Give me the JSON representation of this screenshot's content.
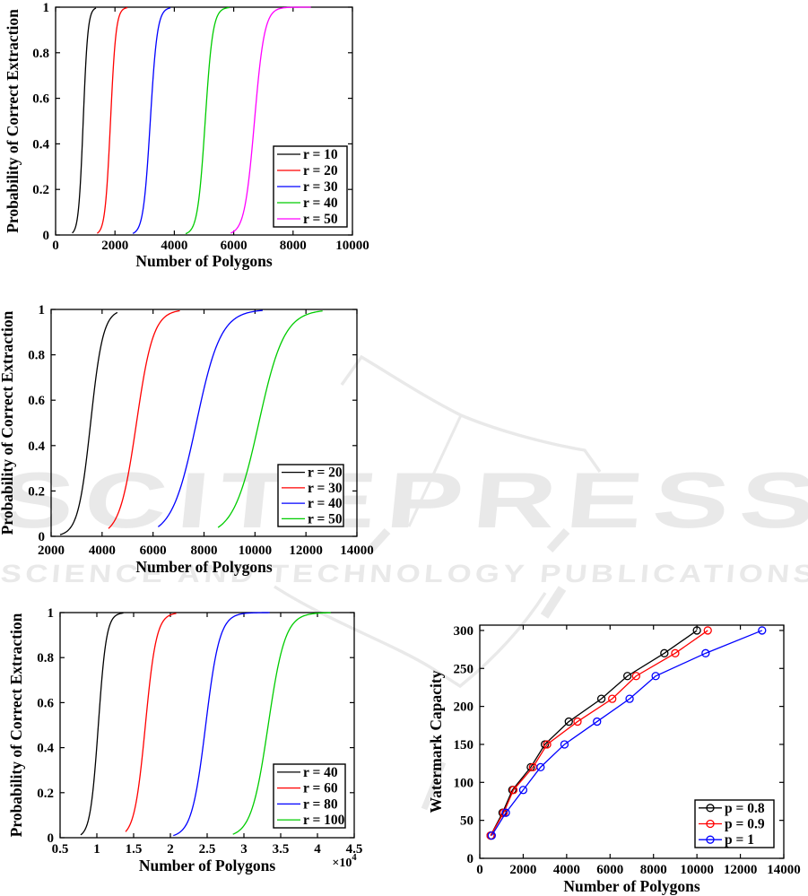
{
  "watermark": {
    "title": "SCITEPRESS",
    "subtitle": "SCIENCE AND TECHNOLOGY PUBLICATIONS",
    "color": "#e9e9e9"
  },
  "chart_data": [
    {
      "type": "line",
      "title": "",
      "xlabel": "Number of Polygons",
      "ylabel": "Probability of Correct Extraction",
      "xlim": [
        0,
        10000
      ],
      "ylim": [
        0,
        1
      ],
      "xticks": [
        0,
        2000,
        4000,
        6000,
        8000,
        10000
      ],
      "xtick_labels": [
        "0",
        "2000",
        "4000",
        "6000",
        "8000",
        "10000"
      ],
      "yticks": [
        0,
        0.2,
        0.4,
        0.6,
        0.8,
        1
      ],
      "ytick_labels": [
        "0",
        "0.2",
        "0.4",
        "0.6",
        "0.8",
        "1"
      ],
      "grid": false,
      "legend_position": "inside-right-bottom",
      "series": [
        {
          "label": "r = 10",
          "color": "#000000",
          "shape": "sigmoid",
          "x0": 930,
          "steepness": 78,
          "x_draw_range": [
            560,
            1360
          ]
        },
        {
          "label": "r = 20",
          "color": "#ff0000",
          "shape": "sigmoid",
          "x0": 1850,
          "steepness": 92,
          "x_draw_range": [
            1400,
            2420
          ]
        },
        {
          "label": "r = 30",
          "color": "#0000ff",
          "shape": "sigmoid",
          "x0": 3190,
          "steepness": 118,
          "x_draw_range": [
            2600,
            3870
          ]
        },
        {
          "label": "r = 40",
          "color": "#00cc00",
          "shape": "sigmoid",
          "x0": 5040,
          "steepness": 128,
          "x_draw_range": [
            4380,
            5850
          ]
        },
        {
          "label": "r = 50",
          "color": "#ff00ff",
          "shape": "sigmoid",
          "x0": 6700,
          "steepness": 168,
          "x_draw_range": [
            5900,
            8600
          ]
        }
      ]
    },
    {
      "type": "line",
      "title": "",
      "xlabel": "Number of Polygons",
      "ylabel": "Probability of Correct Extraction",
      "xlim": [
        2000,
        14000
      ],
      "ylim": [
        0,
        1
      ],
      "xticks": [
        2000,
        4000,
        6000,
        8000,
        10000,
        12000,
        14000
      ],
      "xtick_labels": [
        "2000",
        "4000",
        "6000",
        "8000",
        "10000",
        "12000",
        "14000"
      ],
      "yticks": [
        0,
        0.2,
        0.4,
        0.6,
        0.8,
        1
      ],
      "ytick_labels": [
        "0",
        "0.2",
        "0.4",
        "0.6",
        "0.8",
        "1"
      ],
      "grid": false,
      "legend_position": "inside-right-middle",
      "series": [
        {
          "label": "r = 20",
          "color": "#000000",
          "shape": "sigmoid",
          "x0": 3550,
          "steepness": 245,
          "x_draw_range": [
            2350,
            4600
          ]
        },
        {
          "label": "r = 30",
          "color": "#ff0000",
          "shape": "sigmoid",
          "x0": 5350,
          "steepness": 330,
          "x_draw_range": [
            4250,
            7050
          ]
        },
        {
          "label": "r = 40",
          "color": "#0000ff",
          "shape": "sigmoid",
          "x0": 7700,
          "steepness": 480,
          "x_draw_range": [
            6200,
            10300
          ]
        },
        {
          "label": "r = 50",
          "color": "#00cc00",
          "shape": "sigmoid",
          "x0": 10150,
          "steepness": 500,
          "x_draw_range": [
            8550,
            12650
          ]
        }
      ]
    },
    {
      "type": "line",
      "title": "",
      "xlabel": "Number of Polygons",
      "ylabel": "Probability of Correct Extraction",
      "xlim": [
        5000,
        45000
      ],
      "ylim": [
        0,
        1
      ],
      "xticks": [
        5000,
        10000,
        15000,
        20000,
        25000,
        30000,
        35000,
        40000,
        45000
      ],
      "xtick_labels": [
        "0.5",
        "1",
        "1.5",
        "2",
        "2.5",
        "3",
        "3.5",
        "4",
        "4.5"
      ],
      "yticks": [
        0,
        0.2,
        0.4,
        0.6,
        0.8,
        1
      ],
      "ytick_labels": [
        "0",
        "0.2",
        "0.4",
        "0.6",
        "0.8",
        "1"
      ],
      "exponent": {
        "base": "×10",
        "power": "4"
      },
      "grid": false,
      "legend_position": "inside-right-bottom",
      "series": [
        {
          "label": "r = 40",
          "color": "#000000",
          "shape": "sigmoid",
          "x0": 10200,
          "steepness": 550,
          "x_draw_range": [
            7800,
            13600
          ]
        },
        {
          "label": "r = 60",
          "color": "#ff0000",
          "shape": "sigmoid",
          "x0": 16600,
          "steepness": 750,
          "x_draw_range": [
            13900,
            20800
          ]
        },
        {
          "label": "r = 80",
          "color": "#0000ff",
          "shape": "sigmoid",
          "x0": 24800,
          "steepness": 950,
          "x_draw_range": [
            20400,
            33500
          ]
        },
        {
          "label": "r = 100",
          "color": "#00cc00",
          "shape": "sigmoid",
          "x0": 33300,
          "steepness": 1150,
          "x_draw_range": [
            28500,
            41800
          ]
        }
      ]
    },
    {
      "type": "line",
      "marker": "circle",
      "title": "",
      "xlabel": "Number of Polygons",
      "ylabel": "Watermark Capacity",
      "xlim": [
        0,
        14000
      ],
      "ylim": [
        0,
        307
      ],
      "xticks": [
        0,
        2000,
        4000,
        6000,
        8000,
        10000,
        12000,
        14000
      ],
      "xtick_labels": [
        "0",
        "2000",
        "4000",
        "6000",
        "8000",
        "10000",
        "12000",
        "14000"
      ],
      "yticks": [
        0,
        50,
        100,
        150,
        200,
        250,
        300
      ],
      "ytick_labels": [
        "0",
        "50",
        "100",
        "150",
        "200",
        "250",
        "300"
      ],
      "grid": false,
      "legend_position": "inside-right-bottom",
      "series": [
        {
          "label": "p = 0.8",
          "color": "#000000",
          "shape": "points",
          "x": [
            500,
            1050,
            1500,
            2350,
            3000,
            4100,
            5600,
            6800,
            8500,
            10000
          ],
          "y": [
            30,
            60,
            90,
            120,
            150,
            180,
            210,
            240,
            270,
            300
          ]
        },
        {
          "label": "p = 0.9",
          "color": "#ff0000",
          "shape": "points",
          "x": [
            500,
            1100,
            1550,
            2450,
            3100,
            4500,
            6100,
            7200,
            9000,
            10500
          ],
          "y": [
            30,
            60,
            90,
            120,
            150,
            180,
            210,
            240,
            270,
            300
          ]
        },
        {
          "label": "p = 1",
          "color": "#0000ff",
          "shape": "points",
          "x": [
            550,
            1200,
            2000,
            2800,
            3900,
            5400,
            6900,
            8100,
            10400,
            13000
          ],
          "y": [
            30,
            60,
            90,
            120,
            150,
            180,
            210,
            240,
            270,
            300
          ]
        }
      ]
    }
  ]
}
